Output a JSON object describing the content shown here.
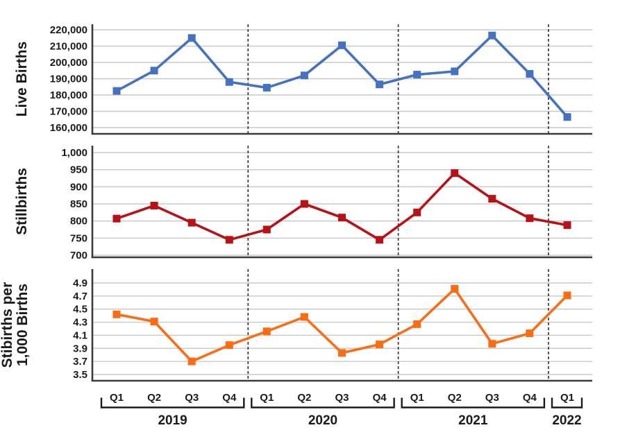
{
  "figure": {
    "background": "#ffffff"
  },
  "style": {
    "gridline_color": "#c8c8c8",
    "axis_color": "#3a3a3a",
    "separator_color": "#2f2f2f",
    "bracket_color": "#1a1a1a",
    "text_color": "#1a1a1a"
  },
  "chart_data": [
    {
      "id": "live-births",
      "type": "line",
      "title": "",
      "ylabel": "Live Births",
      "ylabel_lines": [
        "Live Births"
      ],
      "x": [
        "2019 Q1",
        "2019 Q2",
        "2019 Q3",
        "2019 Q4",
        "2020 Q1",
        "2020 Q2",
        "2020 Q3",
        "2020 Q4",
        "2021 Q1",
        "2021 Q2",
        "2021 Q3",
        "2021 Q4",
        "2022 Q1"
      ],
      "series": [
        {
          "name": "Live Births",
          "values": [
            182500,
            195000,
            215000,
            188000,
            184500,
            192000,
            210500,
            186500,
            192500,
            194500,
            216500,
            193000,
            166500
          ]
        }
      ],
      "ylim": [
        160000,
        220000
      ],
      "ytick_step": 10000,
      "ytick_labels": [
        "220,000",
        "210,000",
        "200,000",
        "190,000",
        "180,000",
        "170,000",
        "160,000"
      ],
      "grid": true,
      "marker": "square",
      "color": "#4471C2"
    },
    {
      "id": "stillbirths",
      "type": "line",
      "title": "",
      "ylabel": "Stillbirths",
      "ylabel_lines": [
        "Stillbirths"
      ],
      "x": [
        "2019 Q1",
        "2019 Q2",
        "2019 Q3",
        "2019 Q4",
        "2020 Q1",
        "2020 Q2",
        "2020 Q3",
        "2020 Q4",
        "2021 Q1",
        "2021 Q2",
        "2021 Q3",
        "2021 Q4",
        "2022 Q1"
      ],
      "series": [
        {
          "name": "Stillbirths",
          "values": [
            807,
            845,
            795,
            745,
            775,
            850,
            810,
            745,
            825,
            940,
            865,
            808,
            788
          ]
        }
      ],
      "ylim": [
        700,
        1000
      ],
      "ytick_step": 50,
      "ytick_labels": [
        "1,000",
        "950",
        "900",
        "850",
        "800",
        "750",
        "700"
      ],
      "grid": true,
      "marker": "square",
      "color": "#B81116"
    },
    {
      "id": "stillbirth-rate",
      "type": "line",
      "title": "",
      "ylabel": "Stibirths per 1,000 Births",
      "ylabel_lines": [
        "Stibirths per",
        "1,000 Births"
      ],
      "x": [
        "2019 Q1",
        "2019 Q2",
        "2019 Q3",
        "2019 Q4",
        "2020 Q1",
        "2020 Q2",
        "2020 Q3",
        "2020 Q4",
        "2021 Q1",
        "2021 Q2",
        "2021 Q3",
        "2021 Q4",
        "2022 Q1"
      ],
      "series": [
        {
          "name": "Stillbirths per 1,000 Births",
          "values": [
            4.42,
            4.31,
            3.7,
            3.95,
            4.16,
            4.38,
            3.83,
            3.96,
            4.27,
            4.81,
            3.97,
            4.13,
            4.71
          ]
        }
      ],
      "ylim": [
        3.5,
        4.9
      ],
      "ytick_step": 0.2,
      "ytick_labels": [
        "4.9",
        "4.7",
        "4.5",
        "4.3",
        "4.1",
        "3.9",
        "3.7",
        "3.5"
      ],
      "grid": true,
      "marker": "square",
      "color": "#FB6C15"
    }
  ],
  "x_axis": {
    "quarter_labels": [
      "Q1",
      "Q2",
      "Q3",
      "Q4",
      "Q1",
      "Q2",
      "Q3",
      "Q4",
      "Q1",
      "Q2",
      "Q3",
      "Q4",
      "Q1"
    ],
    "year_groups": [
      {
        "label": "2019",
        "first": 0,
        "last": 3
      },
      {
        "label": "2020",
        "first": 4,
        "last": 7
      },
      {
        "label": "2021",
        "first": 8,
        "last": 11
      },
      {
        "label": "2022",
        "first": 12,
        "last": 12
      }
    ]
  }
}
